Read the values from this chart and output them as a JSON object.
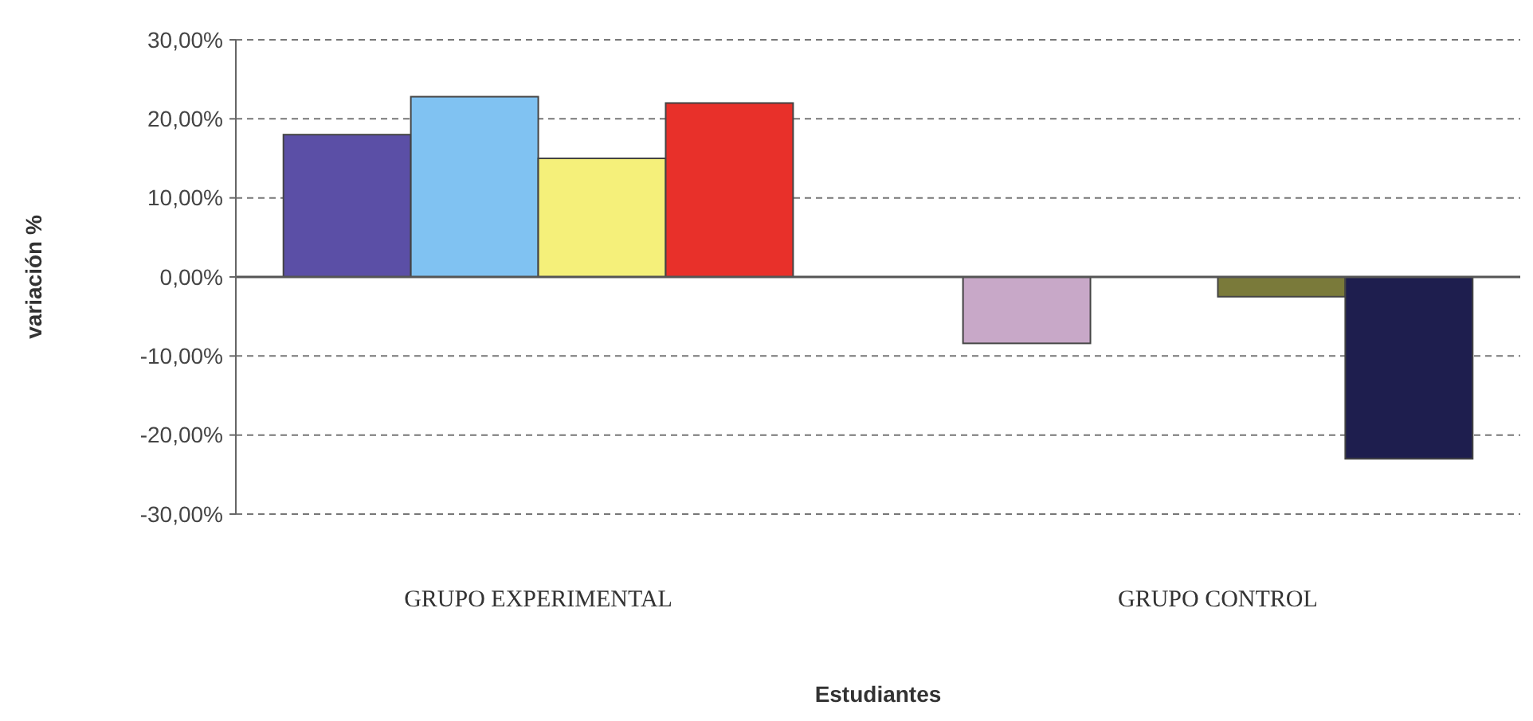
{
  "chart_data": {
    "type": "bar",
    "xlabel": "Estudiantes",
    "ylabel": "variación %",
    "categories": [
      "GRUPO EXPERIMENTAL",
      "GRUPO CONTROL"
    ],
    "series": [
      {
        "colors": [
          "#5b4fa6",
          "#c8a8c8"
        ],
        "values": [
          18,
          -8.4
        ]
      },
      {
        "colors": [
          "#80c2f2",
          null
        ],
        "values": [
          22.8,
          null
        ]
      },
      {
        "colors": [
          "#f5f07a",
          "#7a7a3a"
        ],
        "values": [
          15,
          -2.5
        ]
      },
      {
        "colors": [
          "#e8302a",
          "#1e1e4e"
        ],
        "values": [
          22,
          -23
        ]
      }
    ],
    "ylim": [
      -30,
      30
    ],
    "yticks": [
      {
        "value": -30,
        "label": "-30,00%"
      },
      {
        "value": -20,
        "label": "-20,00%"
      },
      {
        "value": -10,
        "label": "-10,00%"
      },
      {
        "value": 0,
        "label": "0,00%"
      },
      {
        "value": 10,
        "label": "10,00%"
      },
      {
        "value": 20,
        "label": "20,00%"
      },
      {
        "value": 30,
        "label": "30,00%"
      }
    ],
    "grid": "y"
  }
}
